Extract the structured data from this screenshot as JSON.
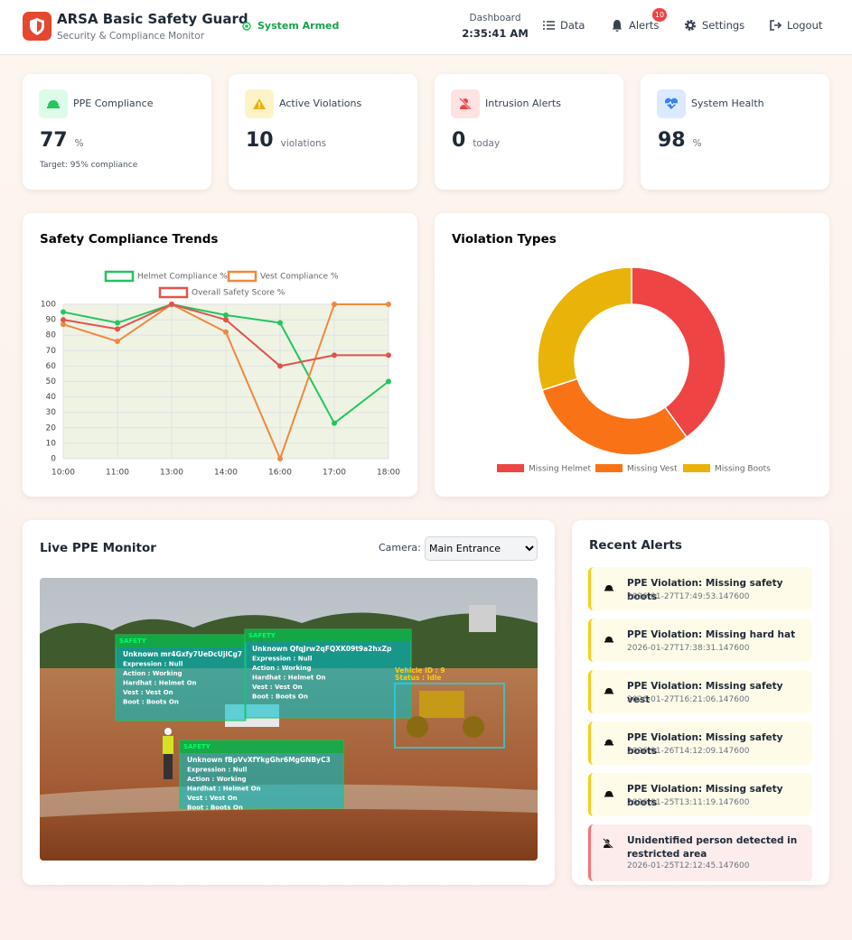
{
  "header": {
    "title": "ARSA Basic Safety Guard",
    "subtitle": "Security & Compliance Monitor",
    "status": "System Armed",
    "clock_label": "Dashboard",
    "clock": "2:35:41 AM",
    "nav": [
      "Data",
      "Alerts",
      "Settings",
      "Logout"
    ],
    "alert_badge": "10"
  },
  "cards": [
    {
      "label": "PPE Compliance",
      "value": 77,
      "unit": "%",
      "note": "Target: 95% compliance"
    },
    {
      "label": "Active Violations",
      "value": 10,
      "unit": "violations"
    },
    {
      "label": "Intrusion Alerts",
      "value": 0,
      "unit": "today"
    },
    {
      "label": "System Health",
      "value": 98,
      "unit": "%"
    }
  ],
  "chart_data": [
    {
      "type": "line",
      "title": "Safety Compliance Trends",
      "categories": [
        "10:00",
        "11:00",
        "13:00",
        "14:00",
        "16:00",
        "17:00",
        "18:00"
      ],
      "series": [
        {
          "name": "Helmet Compliance %",
          "color": "#22c55e",
          "values": [
            95,
            88,
            100,
            93,
            88,
            23,
            50
          ]
        },
        {
          "name": "Vest Compliance %",
          "color": "#f0883e",
          "values": [
            87,
            76,
            100,
            82,
            0,
            100,
            100
          ]
        },
        {
          "name": "Overall Safety Score %",
          "color": "#e0534a",
          "values": [
            90,
            84,
            100,
            90,
            60,
            67,
            67
          ]
        }
      ],
      "ylim": [
        0,
        100
      ],
      "yticks": [
        0,
        10,
        20,
        30,
        40,
        50,
        60,
        70,
        80,
        90,
        100
      ],
      "grid": true,
      "legend": "top"
    },
    {
      "type": "doughnut",
      "title": "Violation Types",
      "categories": [
        "Missing Helmet",
        "Missing Vest",
        "Missing Boots"
      ],
      "values": [
        4,
        3,
        3
      ],
      "colors": [
        "#ef4444",
        "#f97316",
        "#eab308"
      ],
      "legend": "bottom"
    }
  ],
  "monitor": {
    "title": "Live PPE Monitor",
    "camera_label": "Camera:",
    "camera": "Main Entrance",
    "detections": [
      {
        "tag": "SAFETY",
        "lines": [
          "Unknown mr4Gxfy7UeDcUjlCg7",
          "Expression : Null",
          "Action : Working",
          "Hardhat : Helmet On",
          "Vest : Vest On",
          "Boot : Boots On"
        ]
      },
      {
        "tag": "SAFETY",
        "lines": [
          "Unknown QfqJrw2qFQXK09t9a2hxZp",
          "Expression : Null",
          "Action : Working",
          "Hardhat : Helmet On",
          "Vest : Vest On",
          "Boot : Boots On"
        ]
      },
      {
        "tag": "SAFETY",
        "lines": [
          "Unknown fBpVvXfYkgGhr6MgGNByC3",
          "Expression : Null",
          "Action : Working",
          "Hardhat : Helmet On",
          "Vest : Vest On",
          "Boot : Boots On"
        ]
      },
      {
        "lines": [
          "Vehicle ID : 9",
          "Status : Idle"
        ]
      }
    ]
  },
  "alerts": {
    "title": "Recent Alerts",
    "items": [
      {
        "title": "PPE Violation: Missing safety boots",
        "time": "2026-01-27T17:49:53.147600"
      },
      {
        "title": "PPE Violation: Missing hard hat",
        "time": "2026-01-27T17:38:31.147600"
      },
      {
        "title": "PPE Violation: Missing safety vest",
        "time": "2026-01-27T16:21:06.147600"
      },
      {
        "title": "PPE Violation: Missing safety boots",
        "time": "2026-01-26T14:12:09.147600"
      },
      {
        "title": "PPE Violation: Missing safety boots",
        "time": "2026-01-25T13:11:19.147600"
      },
      {
        "title": "Unidentified person detected in restricted area",
        "time": "2026-01-25T12:12:45.147600"
      }
    ]
  }
}
